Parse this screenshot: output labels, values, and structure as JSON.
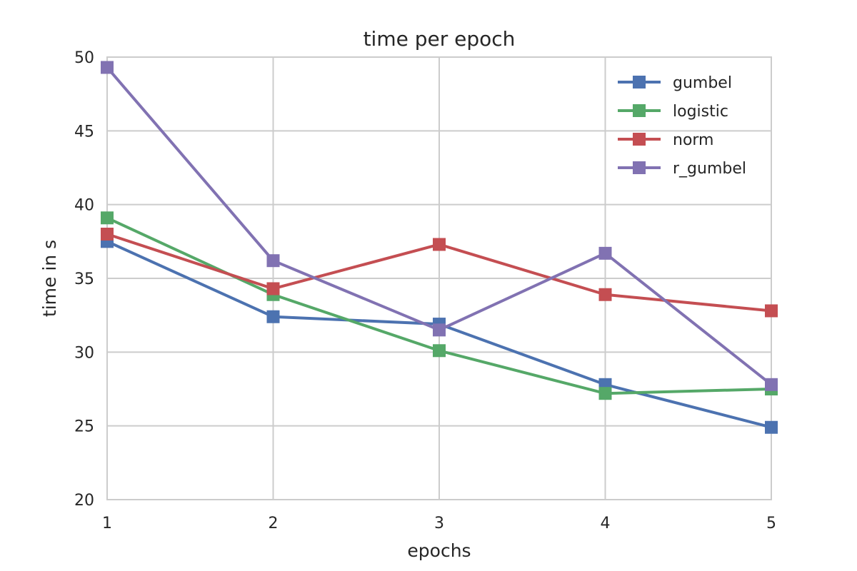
{
  "chart_data": {
    "type": "line",
    "title": "time per epoch",
    "xlabel": "epochs",
    "ylabel": "time in s",
    "x": [
      1,
      2,
      3,
      4,
      5
    ],
    "xlim": [
      1,
      5
    ],
    "ylim": [
      20,
      50
    ],
    "xticks": [
      "1",
      "2",
      "3",
      "4",
      "5"
    ],
    "yticks": [
      "20",
      "25",
      "30",
      "35",
      "40",
      "45",
      "50"
    ],
    "grid": true,
    "legend_position": "top-right",
    "marker": "square",
    "series": [
      {
        "name": "gumbel",
        "color": "#4c72b0",
        "values": [
          37.5,
          32.4,
          31.9,
          27.8,
          24.9
        ]
      },
      {
        "name": "logistic",
        "color": "#55a868",
        "values": [
          39.1,
          33.9,
          30.1,
          27.2,
          27.5
        ]
      },
      {
        "name": "norm",
        "color": "#c44e52",
        "values": [
          38.0,
          34.3,
          37.3,
          33.9,
          32.8
        ]
      },
      {
        "name": "r_gumbel",
        "color": "#8172b2",
        "values": [
          49.3,
          36.2,
          31.5,
          36.7,
          27.8
        ]
      }
    ]
  }
}
